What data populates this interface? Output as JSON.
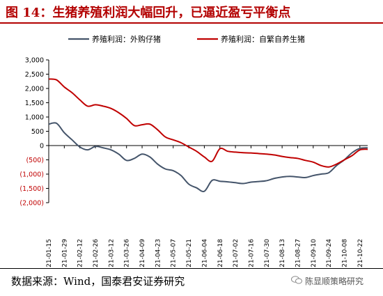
{
  "header": {
    "title": "图 14：生猪养殖利润大幅回升，已逼近盈亏平衡点"
  },
  "footer": {
    "source": "数据来源：Wind，国泰君安证券研究",
    "watermark": "陈显顺策略研究"
  },
  "chart_data": {
    "type": "line",
    "title": "",
    "xlabel": "",
    "ylabel": "",
    "ylim": [
      -2000,
      3000
    ],
    "yticks": [
      3000,
      2500,
      2000,
      1500,
      1000,
      500,
      0,
      -500,
      -1000,
      -1500,
      -2000
    ],
    "ytick_labels": [
      "3,000",
      "2,500",
      "2,000",
      "1,500",
      "1,000",
      "500",
      "0",
      "(500)",
      "(1,000)",
      "(1,500)",
      "(2,000)"
    ],
    "negative_label_color": "#c00000",
    "xtick_labels": [
      "2021-01-15",
      "2021-01-29",
      "2021-02-12",
      "2021-02-26",
      "2021-03-12",
      "2021-03-26",
      "2021-04-09",
      "2021-04-23",
      "2021-05-07",
      "2021-05-21",
      "2021-06-04",
      "2021-06-18",
      "2021-07-02",
      "2021-07-16",
      "2021-07-30",
      "2021-08-13",
      "2021-08-27",
      "2021-09-10",
      "2021-09-24",
      "2021-10-08",
      "2021-10-22"
    ],
    "x": [
      "2021-01-15",
      "2021-01-22",
      "2021-01-29",
      "2021-02-05",
      "2021-02-12",
      "2021-02-19",
      "2021-02-26",
      "2021-03-05",
      "2021-03-12",
      "2021-03-19",
      "2021-03-26",
      "2021-04-02",
      "2021-04-09",
      "2021-04-16",
      "2021-04-23",
      "2021-04-30",
      "2021-05-07",
      "2021-05-14",
      "2021-05-21",
      "2021-05-28",
      "2021-06-04",
      "2021-06-11",
      "2021-06-18",
      "2021-06-25",
      "2021-07-02",
      "2021-07-09",
      "2021-07-16",
      "2021-07-23",
      "2021-07-30",
      "2021-08-06",
      "2021-08-13",
      "2021-08-20",
      "2021-08-27",
      "2021-09-03",
      "2021-09-10",
      "2021-09-17",
      "2021-09-24",
      "2021-10-01",
      "2021-10-08",
      "2021-10-15",
      "2021-10-22",
      "2021-10-29"
    ],
    "legend_position": "top",
    "series": [
      {
        "name": "养殖利润：外购仔猪",
        "color": "#44546a",
        "values": [
          750,
          780,
          450,
          200,
          -50,
          -150,
          -30,
          -80,
          -150,
          -300,
          -520,
          -450,
          -300,
          -400,
          -650,
          -820,
          -880,
          -1050,
          -1350,
          -1480,
          -1600,
          -1220,
          -1250,
          -1270,
          -1300,
          -1330,
          -1280,
          -1260,
          -1230,
          -1150,
          -1100,
          -1080,
          -1100,
          -1120,
          -1050,
          -1000,
          -950,
          -700,
          -500,
          -250,
          -100,
          -80
        ]
      },
      {
        "name": "养殖利润：自繁自养生猪",
        "color": "#c00000",
        "values": [
          2330,
          2300,
          2050,
          1850,
          1600,
          1380,
          1430,
          1380,
          1300,
          1150,
          950,
          700,
          730,
          750,
          550,
          300,
          200,
          100,
          -50,
          -200,
          -400,
          -550,
          -110,
          -200,
          -230,
          -250,
          -260,
          -280,
          -300,
          -330,
          -380,
          -420,
          -450,
          -520,
          -580,
          -700,
          -750,
          -650,
          -500,
          -350,
          -150,
          -130
        ]
      }
    ]
  }
}
